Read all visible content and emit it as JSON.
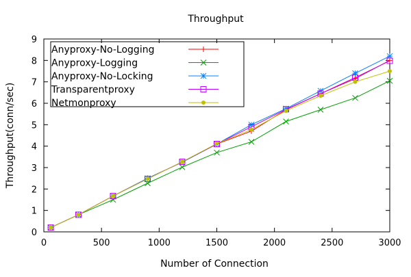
{
  "chart_data": {
    "type": "line",
    "title": "Throughput",
    "xlabel": "Number of Connection",
    "ylabel": "Throughput(conn/sec)",
    "xlim": [
      0,
      3000
    ],
    "ylim": [
      0,
      9
    ],
    "x_ticks": [
      0,
      500,
      1000,
      1500,
      2000,
      2500,
      3000
    ],
    "y_ticks": [
      0,
      1,
      2,
      3,
      4,
      5,
      6,
      7,
      8,
      9
    ],
    "grid": false,
    "legend_position": "top-left",
    "x": [
      60,
      300,
      600,
      900,
      1200,
      1500,
      1800,
      2100,
      2400,
      2700,
      3000
    ],
    "series": [
      {
        "name": "Anyproxy-No-Logging",
        "color": "#ff0000",
        "marker": "plus",
        "values": [
          0.2,
          0.8,
          1.67,
          2.5,
          3.25,
          4.1,
          4.7,
          5.7,
          6.45,
          7.15,
          8.0
        ]
      },
      {
        "name": "Anyproxy-Logging",
        "color": "#00a000",
        "marker": "cross",
        "values": [
          0.2,
          0.8,
          1.5,
          2.27,
          3.02,
          3.7,
          4.2,
          5.15,
          5.7,
          6.25,
          7.05
        ]
      },
      {
        "name": "Anyproxy-No-Locking",
        "color": "#0080ff",
        "marker": "star",
        "values": [
          0.2,
          0.8,
          1.67,
          2.5,
          3.25,
          4.1,
          5.0,
          5.75,
          6.58,
          7.4,
          8.2
        ]
      },
      {
        "name": "Transparentproxy",
        "color": "#c000ff",
        "marker": "square",
        "values": [
          0.2,
          0.8,
          1.67,
          2.47,
          3.27,
          4.1,
          4.9,
          5.72,
          6.45,
          7.2,
          7.98
        ]
      },
      {
        "name": "Netmonproxy",
        "color": "#c0c000",
        "marker": "dot",
        "values": [
          0.2,
          0.8,
          1.67,
          2.47,
          3.27,
          4.12,
          4.77,
          5.65,
          6.35,
          7.0,
          7.5
        ]
      }
    ]
  }
}
